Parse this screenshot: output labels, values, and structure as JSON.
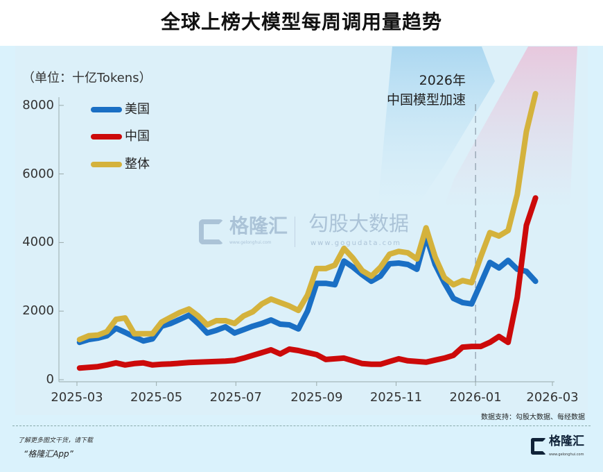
{
  "title": "全球上榜大模型每周调用量趋势",
  "footer": {
    "source": "数据支持：勾股大数据、每经数据",
    "promo_line1": "了解更多图文干货，请下载",
    "promo_line2": "“格隆汇App”",
    "logo_text": "格隆汇",
    "logo_url_text": "www.gelonghui.com"
  },
  "watermark": {
    "brand1": "格隆汇",
    "brand1_url": "www.gelonghui.com",
    "brand2": "勾股大数据",
    "brand2_url": "www.gogudata.com"
  },
  "chart_data": {
    "type": "line",
    "title": "全球上榜大模型每周调用量趋势",
    "ylabel": "（单位：十亿Tokens）",
    "xlabel": "",
    "ylim": [
      0,
      8400
    ],
    "yticks": [
      "0",
      "2000",
      "4000",
      "6000",
      "8000"
    ],
    "ytick_values": [
      0,
      2000,
      4000,
      6000,
      8000
    ],
    "xticks": [
      "2025-03",
      "2025-05",
      "2025-07",
      "2025-09",
      "2025-11",
      "2026-01",
      "2026-03"
    ],
    "xtick_dates": [
      "2025-03-01",
      "2025-05-01",
      "2025-07-01",
      "2025-09-01",
      "2025-11-01",
      "2026-01-01",
      "2026-03-01"
    ],
    "grid": false,
    "legend_position": "top-left",
    "annotation": {
      "line1": "2026年",
      "line2": "中国模型加速",
      "date": "2026-01-01"
    },
    "x": [
      "2025-03-03",
      "2025-03-10",
      "2025-03-17",
      "2025-03-24",
      "2025-03-31",
      "2025-04-07",
      "2025-04-14",
      "2025-04-21",
      "2025-04-28",
      "2025-05-05",
      "2025-05-12",
      "2025-05-19",
      "2025-05-26",
      "2025-06-02",
      "2025-06-09",
      "2025-06-16",
      "2025-06-23",
      "2025-06-30",
      "2025-07-07",
      "2025-07-14",
      "2025-07-21",
      "2025-07-28",
      "2025-08-04",
      "2025-08-11",
      "2025-08-18",
      "2025-08-25",
      "2025-09-01",
      "2025-09-08",
      "2025-09-15",
      "2025-09-22",
      "2025-09-29",
      "2025-10-06",
      "2025-10-13",
      "2025-10-20",
      "2025-10-27",
      "2025-11-03",
      "2025-11-10",
      "2025-11-17",
      "2025-11-24",
      "2025-12-01",
      "2025-12-08",
      "2025-12-15",
      "2025-12-22",
      "2025-12-29",
      "2026-01-05",
      "2026-01-12",
      "2026-01-19",
      "2026-01-26",
      "2026-02-02",
      "2026-02-09",
      "2026-02-16"
    ],
    "series": [
      {
        "name": "美国",
        "color": "#1a6fc4",
        "values": [
          1090,
          1170,
          1210,
          1280,
          1500,
          1380,
          1250,
          1130,
          1190,
          1560,
          1640,
          1760,
          1880,
          1640,
          1360,
          1440,
          1540,
          1360,
          1460,
          1560,
          1640,
          1740,
          1620,
          1600,
          1480,
          2000,
          2810,
          2810,
          2770,
          3460,
          3280,
          3060,
          2870,
          3020,
          3380,
          3400,
          3360,
          3220,
          4190,
          3360,
          2830,
          2370,
          2250,
          2210,
          2810,
          3420,
          3260,
          3480,
          3220,
          3160,
          2870
        ]
      },
      {
        "name": "中国",
        "color": "#cc0a0a",
        "values": [
          340,
          360,
          380,
          430,
          490,
          430,
          470,
          490,
          430,
          450,
          460,
          480,
          500,
          510,
          520,
          530,
          540,
          560,
          630,
          710,
          790,
          870,
          750,
          890,
          850,
          790,
          730,
          590,
          610,
          630,
          550,
          470,
          450,
          450,
          530,
          610,
          550,
          530,
          510,
          570,
          630,
          710,
          950,
          970,
          970,
          1090,
          1260,
          1090,
          2400,
          4500,
          5300
        ]
      },
      {
        "name": "整体",
        "color": "#d4b23c",
        "values": [
          1170,
          1280,
          1300,
          1400,
          1760,
          1800,
          1340,
          1340,
          1340,
          1680,
          1820,
          1960,
          2060,
          1860,
          1600,
          1720,
          1720,
          1640,
          1860,
          1980,
          2210,
          2350,
          2250,
          2150,
          2020,
          2470,
          3240,
          3240,
          3340,
          3830,
          3540,
          3180,
          3020,
          3280,
          3660,
          3740,
          3700,
          3520,
          4430,
          3580,
          2980,
          2770,
          2890,
          2830,
          3580,
          4290,
          4190,
          4350,
          5400,
          7230,
          8340
        ]
      }
    ]
  }
}
